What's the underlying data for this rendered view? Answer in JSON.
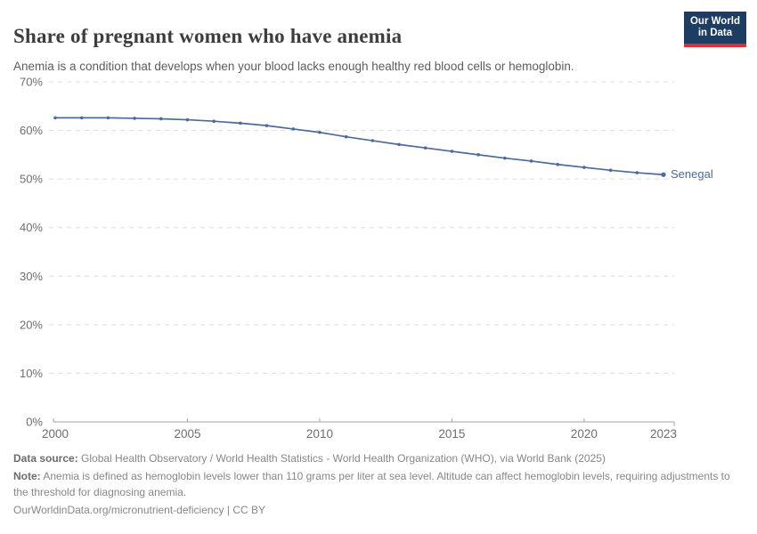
{
  "header": {
    "logo": {
      "line1": "Our World",
      "line2": "in Data",
      "bg_color": "#1d3d63",
      "bar_color": "#dc2f36",
      "text_color": "#ffffff"
    }
  },
  "chart_data": {
    "type": "line",
    "title": "Share of pregnant women who have anemia",
    "subtitle": "Anemia is a condition that develops when your blood lacks enough healthy red blood cells or hemoglobin.",
    "x": [
      2000,
      2001,
      2002,
      2003,
      2004,
      2005,
      2006,
      2007,
      2008,
      2009,
      2010,
      2011,
      2012,
      2013,
      2014,
      2015,
      2016,
      2017,
      2018,
      2019,
      2020,
      2021,
      2022,
      2023
    ],
    "series": [
      {
        "name": "Senegal",
        "color": "#4c6a9c",
        "values": [
          62.6,
          62.6,
          62.6,
          62.5,
          62.4,
          62.2,
          61.9,
          61.5,
          61.0,
          60.3,
          59.6,
          58.7,
          57.9,
          57.1,
          56.4,
          55.7,
          55.0,
          54.3,
          53.7,
          53.0,
          52.4,
          51.8,
          51.3,
          50.9
        ]
      }
    ],
    "xlabel": "",
    "ylabel": "",
    "ylim": [
      0,
      70
    ],
    "yticks": [
      0,
      10,
      20,
      30,
      40,
      50,
      60,
      70
    ],
    "ytick_suffix": "%",
    "xticks": [
      2000,
      2005,
      2010,
      2015,
      2020,
      2023
    ],
    "layout": {
      "grid": "horizontal-dashed",
      "grid_color": "#dcdcdc",
      "tick_label_color": "#6e6e6e",
      "axis_color": "#a3a3a3",
      "legend": "end-of-line label"
    }
  },
  "footer": {
    "data_source_label": "Data source:",
    "data_source_text": " Global Health Observatory / World Health Statistics - World Health Organization (WHO), via World Bank (2025)",
    "note_label": "Note:",
    "note_text": " Anemia is defined as hemoglobin levels lower than 110 grams per liter at sea level. Altitude can affect hemoglobin levels, requiring adjustments to the threshold for diagnosing anemia.",
    "citation_link": "OurWorldinData.org/micronutrient-deficiency",
    "citation_suffix": " | CC BY"
  }
}
